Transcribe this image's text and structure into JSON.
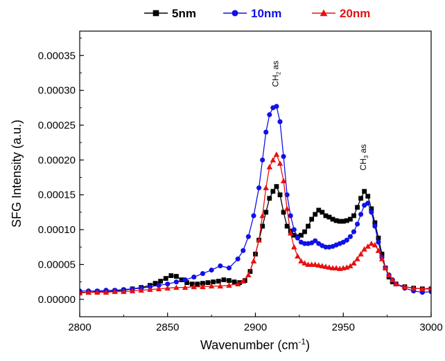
{
  "chart_data": {
    "type": "line",
    "xlabel": "Wavenumber (cm",
    "xlabel_sup": "-1",
    "xlabel_tail": ")",
    "ylabel": "SFG Intensity (a.u.)",
    "xlim": [
      2800,
      3000
    ],
    "ylim": [
      -2.5e-05,
      0.000385
    ],
    "xticks": [
      2800,
      2850,
      2900,
      2950,
      3000
    ],
    "xtick_labels": [
      "2800",
      "2850",
      "2900",
      "2950",
      "3000"
    ],
    "yticks": [
      0.0,
      5e-05,
      0.0001,
      0.00015,
      0.0002,
      0.00025,
      0.0003,
      0.00035
    ],
    "ytick_labels": [
      "0.00000",
      "0.00005",
      "0.00010",
      "0.00015",
      "0.00020",
      "0.00025",
      "0.00030",
      "0.00035"
    ],
    "grid": false,
    "legend_position": "top",
    "annotations": [
      {
        "base": "CH",
        "sub": "2",
        "tail": " as",
        "x": 2913,
        "y": 0.000305
      },
      {
        "base": "CH",
        "sub": "3",
        "tail": " as",
        "x": 2963,
        "y": 0.000185
      }
    ],
    "series": [
      {
        "name": "5nm",
        "color": "#000000",
        "marker": "square",
        "x": [
          2800,
          2805,
          2810,
          2815,
          2820,
          2825,
          2830,
          2835,
          2840,
          2843,
          2846,
          2849,
          2852,
          2855,
          2858,
          2861,
          2864,
          2867,
          2870,
          2873,
          2876,
          2879,
          2882,
          2885,
          2888,
          2891,
          2894,
          2897,
          2900,
          2902,
          2904,
          2906,
          2908,
          2910,
          2912,
          2914,
          2916,
          2918,
          2920,
          2922,
          2924,
          2926,
          2928,
          2930,
          2932,
          2934,
          2936,
          2938,
          2940,
          2942,
          2944,
          2946,
          2948,
          2950,
          2952,
          2954,
          2956,
          2958,
          2960,
          2962,
          2964,
          2966,
          2968,
          2970,
          2972,
          2974,
          2976,
          2978,
          2980,
          2985,
          2990,
          2995,
          3000
        ],
        "y": [
          1e-05,
          1e-05,
          1.1e-05,
          1.1e-05,
          1.2e-05,
          1.3e-05,
          1.5e-05,
          1.7e-05,
          2e-05,
          2.3e-05,
          2.6e-05,
          3e-05,
          3.4e-05,
          3.3e-05,
          2.8e-05,
          2.4e-05,
          2.2e-05,
          2.2e-05,
          2.3e-05,
          2.4e-05,
          2.5e-05,
          2.6e-05,
          2.8e-05,
          2.7e-05,
          2.5e-05,
          2.4e-05,
          2.7e-05,
          4e-05,
          6.5e-05,
          8.5e-05,
          0.000105,
          0.000125,
          0.000145,
          0.000155,
          0.000162,
          0.00015,
          0.000125,
          0.000105,
          9.8e-05,
          9.2e-05,
          9e-05,
          9.2e-05,
          9.7e-05,
          0.000105,
          0.000115,
          0.000122,
          0.000128,
          0.000125,
          0.00012,
          0.000118,
          0.000115,
          0.000113,
          0.000112,
          0.000112,
          0.000113,
          0.000115,
          0.00012,
          0.000132,
          0.000145,
          0.000155,
          0.000148,
          0.00013,
          0.00011,
          8.8e-05,
          6.5e-05,
          4.5e-05,
          3.2e-05,
          2.5e-05,
          2.2e-05,
          1.8e-05,
          1.6e-05,
          1.5e-05,
          1.5e-05
        ]
      },
      {
        "name": "10nm",
        "color": "#1010e8",
        "marker": "circle",
        "x": [
          2800,
          2805,
          2810,
          2815,
          2820,
          2825,
          2830,
          2835,
          2840,
          2845,
          2850,
          2855,
          2860,
          2865,
          2870,
          2875,
          2880,
          2885,
          2890,
          2893,
          2896,
          2899,
          2902,
          2904,
          2906,
          2908,
          2910,
          2912,
          2914,
          2916,
          2918,
          2920,
          2922,
          2924,
          2926,
          2928,
          2930,
          2932,
          2934,
          2936,
          2938,
          2940,
          2942,
          2944,
          2946,
          2948,
          2950,
          2952,
          2954,
          2956,
          2958,
          2960,
          2962,
          2964,
          2966,
          2968,
          2970,
          2972,
          2974,
          2976,
          2978,
          2980,
          2985,
          2990,
          2995,
          3000
        ],
        "y": [
          1.2e-05,
          1.2e-05,
          1.2e-05,
          1.3e-05,
          1.3e-05,
          1.4e-05,
          1.5e-05,
          1.6e-05,
          1.8e-05,
          2e-05,
          2.2e-05,
          2.5e-05,
          2.8e-05,
          3.2e-05,
          3.7e-05,
          4.2e-05,
          4.8e-05,
          4.5e-05,
          5.8e-05,
          7e-05,
          9e-05,
          0.00012,
          0.00016,
          0.0002,
          0.00024,
          0.000265,
          0.000275,
          0.000277,
          0.000255,
          0.000205,
          0.00015,
          0.00012,
          0.0001,
          8.8e-05,
          8.2e-05,
          8e-05,
          8e-05,
          8.1e-05,
          8.4e-05,
          8e-05,
          7.7e-05,
          7.5e-05,
          7.5e-05,
          7.6e-05,
          7.8e-05,
          8e-05,
          8.2e-05,
          8.5e-05,
          9e-05,
          9.7e-05,
          0.000108,
          0.000122,
          0.000135,
          0.000138,
          0.000125,
          0.000105,
          8.2e-05,
          6e-05,
          4.5e-05,
          3.5e-05,
          2.8e-05,
          2.2e-05,
          1.6e-05,
          1.2e-05,
          1e-05,
          1.1e-05
        ]
      },
      {
        "name": "20nm",
        "color": "#e81010",
        "marker": "triangle",
        "x": [
          2800,
          2805,
          2810,
          2815,
          2820,
          2825,
          2830,
          2835,
          2840,
          2845,
          2850,
          2855,
          2860,
          2865,
          2870,
          2875,
          2880,
          2885,
          2890,
          2893,
          2896,
          2899,
          2902,
          2904,
          2906,
          2908,
          2910,
          2912,
          2914,
          2916,
          2918,
          2920,
          2922,
          2924,
          2926,
          2928,
          2930,
          2932,
          2934,
          2936,
          2938,
          2940,
          2942,
          2944,
          2946,
          2948,
          2950,
          2952,
          2954,
          2956,
          2958,
          2960,
          2962,
          2964,
          2966,
          2968,
          2970,
          2972,
          2974,
          2976,
          2978,
          2980,
          2985,
          2990,
          2995,
          3000
        ],
        "y": [
          9e-06,
          1e-05,
          1e-05,
          1e-05,
          1.1e-05,
          1.1e-05,
          1.2e-05,
          1.3e-05,
          1.4e-05,
          1.5e-05,
          1.6e-05,
          1.7e-05,
          1.7e-05,
          1.8e-05,
          1.8e-05,
          1.9e-05,
          1.9e-05,
          2e-05,
          2.2e-05,
          2.6e-05,
          3.5e-05,
          5.5e-05,
          8.5e-05,
          0.00012,
          0.00016,
          0.00019,
          0.0002,
          0.000208,
          0.000195,
          0.00017,
          0.00013,
          9.5e-05,
          7.5e-05,
          6.2e-05,
          5.5e-05,
          5.2e-05,
          5e-05,
          5e-05,
          5e-05,
          4.9e-05,
          4.8e-05,
          4.7e-05,
          4.6e-05,
          4.5e-05,
          4.5e-05,
          4.4e-05,
          4.5e-05,
          4.6e-05,
          4.8e-05,
          5.2e-05,
          5.8e-05,
          6.5e-05,
          7.2e-05,
          7.6e-05,
          8e-05,
          7.8e-05,
          7e-05,
          5.8e-05,
          4.5e-05,
          3.5e-05,
          2.8e-05,
          2.2e-05,
          1.8e-05,
          1.6e-05,
          1.5e-05,
          1.6e-05
        ]
      }
    ]
  }
}
